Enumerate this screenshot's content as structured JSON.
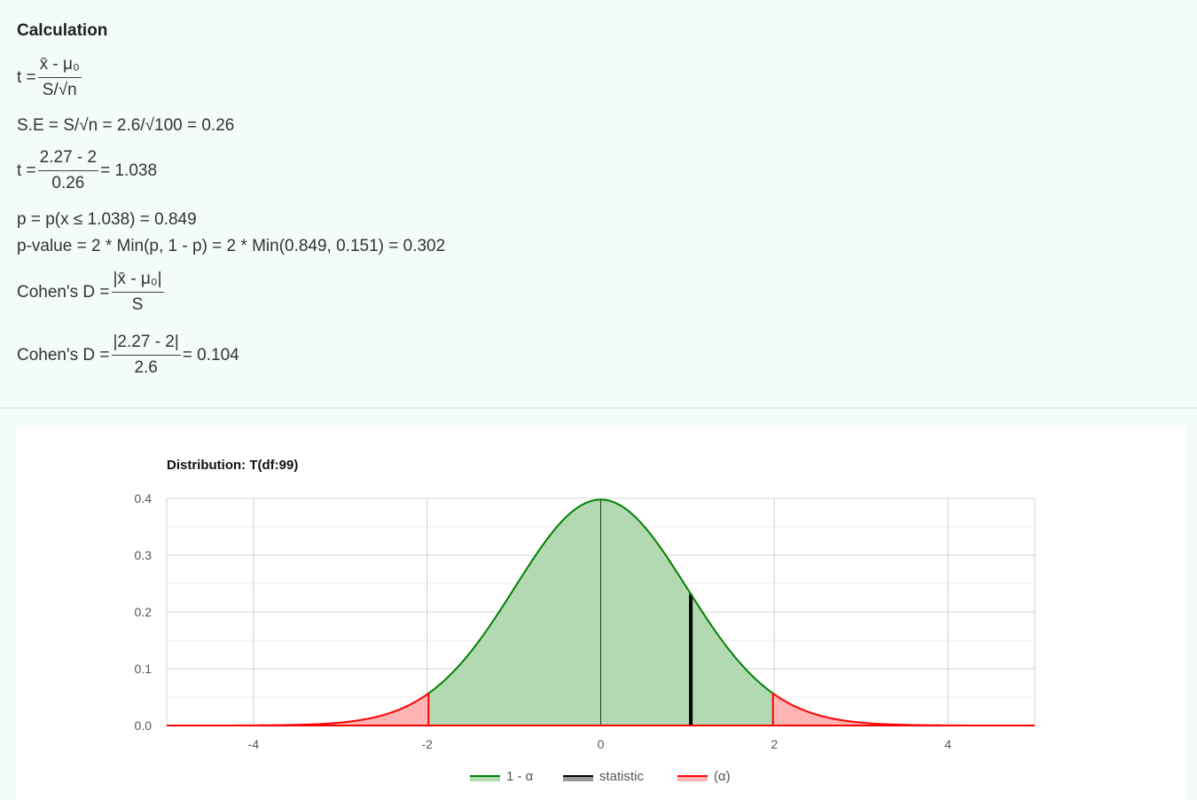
{
  "calculation": {
    "title": "Calculation",
    "t_formula": {
      "lhs": "t =",
      "num": "x̄ - μ₀",
      "den": "S/√n"
    },
    "se_line": "S.E = S/√n = 2.6/√100 = 0.26",
    "t_value": {
      "lhs": "t =",
      "num": "2.27 - 2",
      "den": "0.26",
      "rhs": "= 1.038"
    },
    "p_line": "p = p(x ≤ 1.038) = 0.849",
    "pvalue_line": "p-value = 2 * Min(p, 1 - p) = 2 * Min(0.849, 0.151) = 0.302",
    "cohen_formula": {
      "lhs": "Cohen's D =",
      "num": "|x̄ - μ₀|",
      "den": "S"
    },
    "cohen_value": {
      "lhs": "Cohen's D =",
      "num": "|2.27 - 2|",
      "den": "2.6",
      "rhs": "= 0.104"
    }
  },
  "chart_data": {
    "type": "area",
    "title": "Distribution: T(df:99)",
    "distribution": "Student t",
    "df": 99,
    "xlim": [
      -5,
      5
    ],
    "ylim": [
      0,
      0.4
    ],
    "x_ticks": [
      "-4",
      "-2",
      "0",
      "2",
      "4"
    ],
    "x_tick_values": [
      -4,
      -2,
      0,
      2,
      4
    ],
    "y_ticks": [
      "0.0",
      "0.1",
      "0.2",
      "0.3",
      "0.4"
    ],
    "y_tick_values": [
      0,
      0.1,
      0.2,
      0.3,
      0.4
    ],
    "critical_values": [
      -1.984,
      1.984
    ],
    "statistic": 1.038,
    "center_line": 0,
    "series": [
      {
        "name": "1 - α",
        "region": [
          -1.984,
          1.984
        ],
        "color": "#008000",
        "fill": "#b3d9b3"
      },
      {
        "name": "statistic",
        "x": 1.038,
        "color": "#000000"
      },
      {
        "name": "(α)",
        "region": "tails",
        "color": "#ff0000",
        "fill": "#ffb3b3"
      }
    ],
    "grid": true,
    "legend_position": "bottom"
  }
}
